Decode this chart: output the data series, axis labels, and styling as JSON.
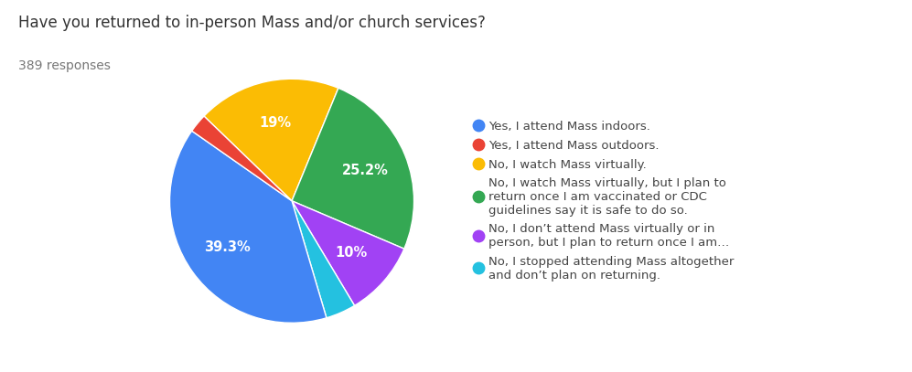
{
  "title": "Have you returned to in-person Mass and/or church services?",
  "subtitle": "389 responses",
  "slices": [
    39.3,
    2.5,
    19.0,
    25.2,
    10.0,
    4.0
  ],
  "slice_labels": [
    "39.3%",
    "",
    "19%",
    "25.2%",
    "10%",
    ""
  ],
  "colors": [
    "#4285F4",
    "#EA4335",
    "#FBBC04",
    "#34A853",
    "#A142F4",
    "#24C1E0"
  ],
  "legend_labels": [
    "Yes, I attend Mass indoors.",
    "Yes, I attend Mass outdoors.",
    "No, I watch Mass virtually.",
    "No, I watch Mass virtually, but I plan to\nreturn once I am vaccinated or CDC\nguidelines say it is safe to do so.",
    "No, I don’t attend Mass virtually or in\nperson, but I plan to return once I am…",
    "No, I stopped attending Mass altogether\nand don’t plan on returning."
  ],
  "title_fontsize": 12,
  "subtitle_fontsize": 10,
  "legend_fontsize": 9.5,
  "label_fontsize": 10.5,
  "background_color": "#ffffff",
  "startangle": 136,
  "label_r": 0.65
}
